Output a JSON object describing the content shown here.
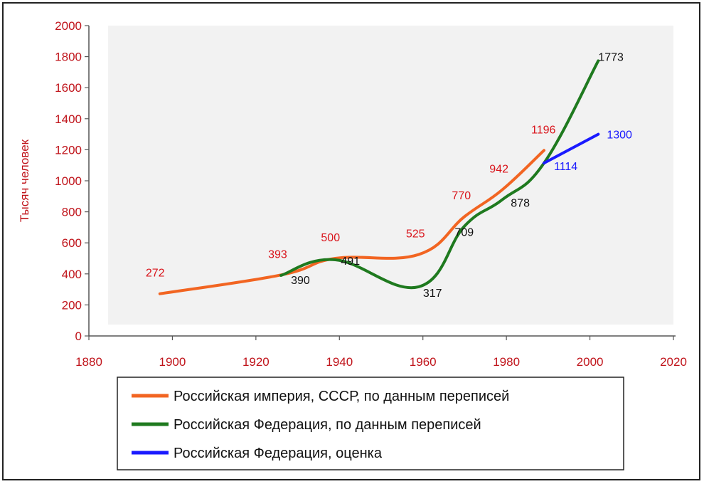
{
  "chart_data": {
    "type": "line",
    "title": "",
    "xlabel": "",
    "ylabel": "Тысяч человек",
    "xlim": [
      1880,
      2020
    ],
    "ylim": [
      0,
      2000
    ],
    "xticks": [
      "1880",
      "1900",
      "1920",
      "1940",
      "1960",
      "1980",
      "2000",
      "2020"
    ],
    "yticks": [
      "0",
      "200",
      "400",
      "600",
      "800",
      "1000",
      "1200",
      "1400",
      "1600",
      "1800",
      "2000"
    ],
    "grid": false,
    "legend_position": "bottom",
    "series": [
      {
        "name": "Российская империя, СССР, по данным переписей",
        "color": "#f26522",
        "label_color": "#d9141b",
        "points": [
          [
            1897,
            272
          ],
          [
            1926,
            393
          ],
          [
            1939,
            500
          ],
          [
            1959,
            525
          ],
          [
            1970,
            770
          ],
          [
            1979,
            942
          ],
          [
            1989,
            1196
          ]
        ],
        "labels": [
          {
            "x": 1897,
            "y": 272,
            "text": "272"
          },
          {
            "x": 1926,
            "y": 393,
            "text": "393"
          },
          {
            "x": 1939,
            "y": 500,
            "text": "500"
          },
          {
            "x": 1959,
            "y": 525,
            "text": "525"
          },
          {
            "x": 1970,
            "y": 770,
            "text": "770"
          },
          {
            "x": 1979,
            "y": 942,
            "text": "942"
          },
          {
            "x": 1989,
            "y": 1196,
            "text": "1196"
          }
        ]
      },
      {
        "name": "Российская Федерация, по данным переписей",
        "color": "#1f7a1f",
        "label_color": "#111111",
        "points": [
          [
            1926,
            390
          ],
          [
            1939,
            491
          ],
          [
            1959,
            317
          ],
          [
            1970,
            709
          ],
          [
            1979,
            878
          ],
          [
            1989,
            1114
          ],
          [
            2002,
            1773
          ]
        ],
        "labels": [
          {
            "x": 1926,
            "y": 390,
            "text": "390"
          },
          {
            "x": 1939,
            "y": 491,
            "text": "491"
          },
          {
            "x": 1959,
            "y": 317,
            "text": "317"
          },
          {
            "x": 1970,
            "y": 709,
            "text": "709"
          },
          {
            "x": 1979,
            "y": 878,
            "text": "878"
          },
          {
            "x": 2002,
            "y": 1773,
            "text": "1773"
          }
        ]
      },
      {
        "name": "Российская Федерация, оценка",
        "color": "#1a1aff",
        "label_color": "#1a1aff",
        "points": [
          [
            1989,
            1114
          ],
          [
            2002,
            1300
          ]
        ],
        "labels": [
          {
            "x": 1989,
            "y": 1114,
            "text": "1114"
          },
          {
            "x": 2002,
            "y": 1300,
            "text": "1300"
          }
        ]
      }
    ]
  }
}
